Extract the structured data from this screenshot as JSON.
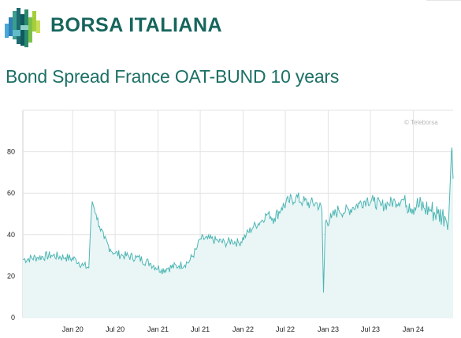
{
  "brand": {
    "name": "BORSA ITALIANA"
  },
  "page": {
    "title": "Bond Spread France OAT-BUND 10 years"
  },
  "colors": {
    "line": "#4fb6b4",
    "fill": "#eaf6f6",
    "grid": "#e3e3e3",
    "brand": "#16655c"
  },
  "chart_data": {
    "type": "area",
    "credit": "© Teleborsa",
    "x_ticks": [
      "Jan 20",
      "Jul 20",
      "Jan 21",
      "Jul 21",
      "Jan 22",
      "Jul 22",
      "Jan 23",
      "Jul 23",
      "Jan 24"
    ],
    "y_ticks": [
      0,
      20,
      40,
      60,
      80
    ],
    "ylim": [
      0,
      100
    ],
    "xlim": [
      "2019-06-01",
      "2024-06-20"
    ],
    "grid": {
      "horizontal": true,
      "vertical": true
    },
    "series": [
      {
        "x": [
          "2019-06-01",
          "2019-08-01",
          "2019-10-01",
          "2019-12-01",
          "2020-01-15",
          "2020-02-15",
          "2020-03-10",
          "2020-03-18",
          "2020-03-25",
          "2020-04-10",
          "2020-04-25",
          "2020-05-15",
          "2020-06-10",
          "2020-07-01",
          "2020-08-01",
          "2020-10-01",
          "2020-12-01",
          "2021-01-15",
          "2021-02-15",
          "2021-04-01",
          "2021-05-15",
          "2021-06-15",
          "2021-07-01",
          "2021-08-01",
          "2021-09-15",
          "2021-10-15",
          "2021-11-15",
          "2021-12-15",
          "2022-01-15",
          "2022-02-15",
          "2022-03-15",
          "2022-04-15",
          "2022-05-15",
          "2022-06-15",
          "2022-07-15",
          "2022-08-15",
          "2022-09-15",
          "2022-10-15",
          "2022-11-15",
          "2022-12-05",
          "2022-12-12",
          "2022-12-20",
          "2023-01-15",
          "2023-02-15",
          "2023-03-15",
          "2023-04-15",
          "2023-05-15",
          "2023-06-15",
          "2023-07-15",
          "2023-08-15",
          "2023-09-15",
          "2023-10-15",
          "2023-11-15",
          "2023-12-15",
          "2024-01-15",
          "2024-02-15",
          "2024-03-15",
          "2024-04-15",
          "2024-05-15",
          "2024-06-01",
          "2024-06-10",
          "2024-06-15",
          "2024-06-20"
        ],
        "y": [
          28,
          29,
          30,
          29,
          28,
          25,
          24,
          45,
          56,
          50,
          44,
          38,
          33,
          31,
          30,
          29,
          26,
          23,
          24,
          25,
          27,
          33,
          38,
          38,
          37,
          36,
          37,
          36,
          40,
          44,
          46,
          50,
          48,
          53,
          56,
          58,
          56,
          55,
          55,
          52,
          12,
          46,
          48,
          52,
          51,
          53,
          55,
          57,
          56,
          54,
          55,
          56,
          57,
          55,
          54,
          53,
          52,
          50,
          49,
          48,
          72,
          82,
          67
        ]
      }
    ]
  }
}
